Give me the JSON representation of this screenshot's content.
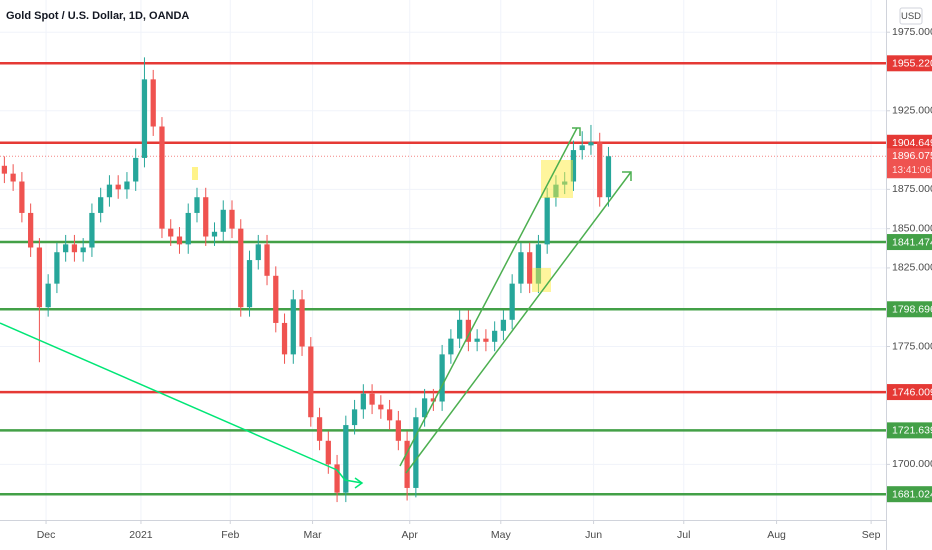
{
  "chart_data": {
    "type": "candlestick",
    "title": "Gold Spot / U.S. Dollar, 1D, OANDA",
    "currency": "USD",
    "up_color": "#26a69a",
    "down_color": "#ef5350",
    "grid": true,
    "open": [
      1890,
      1885,
      1880,
      1860,
      1838,
      1800,
      1815,
      1835,
      1840,
      1835,
      1838,
      1860,
      1870,
      1878,
      1875,
      1880,
      1895,
      1945,
      1915,
      1850,
      1845,
      1840,
      1860,
      1870,
      1845,
      1848,
      1862,
      1850,
      1800,
      1830,
      1840,
      1820,
      1790,
      1770,
      1805,
      1775,
      1730,
      1715,
      1700,
      1682,
      1725,
      1735,
      1745,
      1738,
      1735,
      1728,
      1715,
      1685,
      1730,
      1742,
      1740,
      1770,
      1780,
      1792,
      1778,
      1780,
      1778,
      1785,
      1792,
      1815,
      1835,
      1815,
      1840,
      1870,
      1878,
      1880,
      1900,
      1903,
      1905,
      1870
    ],
    "high": [
      1896,
      1891,
      1886,
      1866,
      1844,
      1821,
      1841,
      1846,
      1846,
      1844,
      1866,
      1876,
      1884,
      1884,
      1886,
      1901,
      1959,
      1951,
      1921,
      1856,
      1851,
      1866,
      1876,
      1876,
      1854,
      1868,
      1868,
      1856,
      1836,
      1846,
      1846,
      1826,
      1796,
      1811,
      1811,
      1781,
      1736,
      1721,
      1706,
      1731,
      1741,
      1751,
      1751,
      1744,
      1741,
      1734,
      1721,
      1736,
      1748,
      1748,
      1776,
      1786,
      1798,
      1798,
      1786,
      1786,
      1791,
      1798,
      1821,
      1841,
      1841,
      1846,
      1876,
      1884,
      1886,
      1906,
      1912,
      1916,
      1911,
      1902
    ],
    "low": [
      1879,
      1874,
      1854,
      1832,
      1765,
      1794,
      1809,
      1829,
      1829,
      1829,
      1832,
      1854,
      1864,
      1869,
      1869,
      1874,
      1889,
      1909,
      1844,
      1839,
      1834,
      1834,
      1854,
      1839,
      1839,
      1842,
      1844,
      1794,
      1794,
      1824,
      1814,
      1784,
      1764,
      1764,
      1769,
      1724,
      1709,
      1694,
      1676,
      1676,
      1719,
      1729,
      1732,
      1729,
      1722,
      1709,
      1677,
      1679,
      1724,
      1734,
      1734,
      1764,
      1774,
      1772,
      1772,
      1772,
      1772,
      1779,
      1786,
      1809,
      1809,
      1809,
      1834,
      1864,
      1872,
      1874,
      1894,
      1897,
      1864,
      1864
    ],
    "close": [
      1885,
      1880,
      1860,
      1838,
      1800,
      1815,
      1835,
      1840,
      1835,
      1838,
      1860,
      1870,
      1878,
      1875,
      1880,
      1895,
      1945,
      1915,
      1850,
      1845,
      1840,
      1860,
      1870,
      1845,
      1848,
      1862,
      1850,
      1800,
      1830,
      1840,
      1820,
      1790,
      1770,
      1805,
      1775,
      1730,
      1715,
      1700,
      1682,
      1725,
      1735,
      1745,
      1738,
      1735,
      1728,
      1715,
      1685,
      1730,
      1742,
      1740,
      1770,
      1780,
      1792,
      1778,
      1780,
      1778,
      1785,
      1792,
      1815,
      1835,
      1815,
      1840,
      1870,
      1878,
      1880,
      1900,
      1903,
      1905,
      1870,
      1896.075
    ],
    "xlim": [
      -0.5,
      100.7
    ],
    "xticks": [
      {
        "value": 4.76,
        "label": "Dec"
      },
      {
        "value": 15.6,
        "label": "2021"
      },
      {
        "value": 25.8,
        "label": "Feb"
      },
      {
        "value": 35.2,
        "label": "Mar"
      },
      {
        "value": 46.3,
        "label": "Apr"
      },
      {
        "value": 56.7,
        "label": "May"
      },
      {
        "value": 67.3,
        "label": "Jun"
      },
      {
        "value": 77.6,
        "label": "Jul"
      },
      {
        "value": 88.2,
        "label": "Aug"
      },
      {
        "value": 99.0,
        "label": "Sep"
      }
    ],
    "ylim": [
      1664.6,
      1995.5
    ],
    "yticks": [
      {
        "value": 1975,
        "label": "1975.000"
      },
      {
        "value": 1925,
        "label": "1925.000"
      },
      {
        "value": 1875,
        "label": "1875.000"
      },
      {
        "value": 1850,
        "label": "1850.000"
      },
      {
        "value": 1825,
        "label": "1825.000"
      },
      {
        "value": 1775,
        "label": "1775.000"
      },
      {
        "value": 1700,
        "label": "1700.000"
      }
    ],
    "levels": [
      {
        "value": 1955.22,
        "label": "1955.220",
        "color": "#e53935"
      },
      {
        "value": 1904.649,
        "label": "1904.649",
        "color": "#e53935"
      },
      {
        "value": 1841.474,
        "label": "1841.474",
        "color": "#43a047"
      },
      {
        "value": 1798.696,
        "label": "1798.696",
        "color": "#43a047"
      },
      {
        "value": 1746.009,
        "label": "1746.009",
        "color": "#e53935"
      },
      {
        "value": 1721.639,
        "label": "1721.639",
        "color": "#43a047"
      },
      {
        "value": 1681.024,
        "label": "1681.024",
        "color": "#43a047"
      }
    ],
    "last_price": {
      "value": 1896.075,
      "label": "1896.075",
      "countdown": "13:41:06",
      "color": "#ef5350"
    }
  }
}
